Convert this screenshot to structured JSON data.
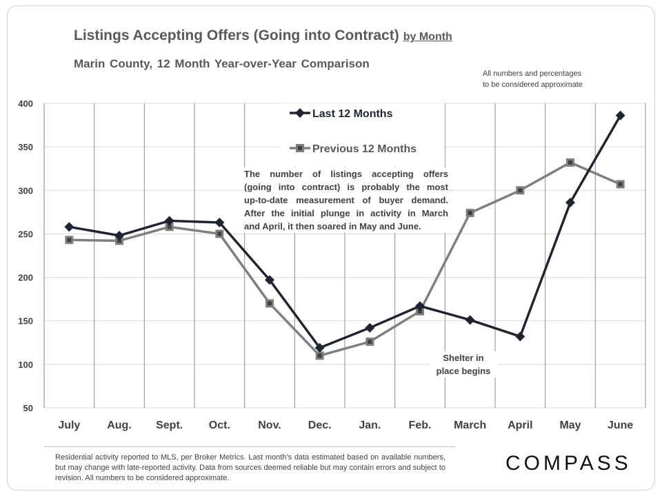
{
  "header": {
    "title": "Listings Accepting Offers (Going into Contract)",
    "title_suffix": "by Month",
    "subtitle": "Marin County,  12 Month Year-over-Year  Comparison",
    "note_line1": "All numbers and percentages",
    "note_line2": "to be considered approximate"
  },
  "annotation": {
    "lines": [
      "The number of listings accepting offers",
      "(going into contract) is probably the most",
      "up-to-date measurement of buyer demand.",
      "After the initial plunge in activity in March",
      "and April, it then soared in May and June."
    ]
  },
  "shelter_note": {
    "line1": "Shelter in",
    "line2": "place begins"
  },
  "footer": {
    "text": "Residential activity reported to MLS, per Broker Metrics. Last month’s data estimated based on available numbers, but may change with late-reported activity. Data from sources deemed reliable but may contain errors and subject to revision. All numbers to be considered approximate.",
    "logo": "COMPASS"
  },
  "chart_data": {
    "type": "line",
    "title": "Listings Accepting Offers (Going into Contract) by Month",
    "categories": [
      "July",
      "Aug.",
      "Sept.",
      "Oct.",
      "Nov.",
      "Dec.",
      "Jan.",
      "Feb.",
      "March",
      "April",
      "May",
      "June"
    ],
    "ylim": [
      50,
      400
    ],
    "yticks": [
      "50",
      "100",
      "150",
      "200",
      "250",
      "300",
      "350",
      "400"
    ],
    "grid": true,
    "legend_placement": "top-center",
    "series": [
      {
        "name": "Last 12 Months",
        "color": "#1f2433",
        "marker": "diamond",
        "values": [
          258,
          248,
          265,
          263,
          197,
          119,
          142,
          167,
          151,
          132,
          286,
          386
        ]
      },
      {
        "name": "Previous 12 Months",
        "color": "#7f7f7f",
        "marker": "square",
        "values": [
          243,
          242,
          258,
          250,
          170,
          110,
          126,
          161,
          274,
          300,
          332,
          307
        ]
      }
    ]
  }
}
